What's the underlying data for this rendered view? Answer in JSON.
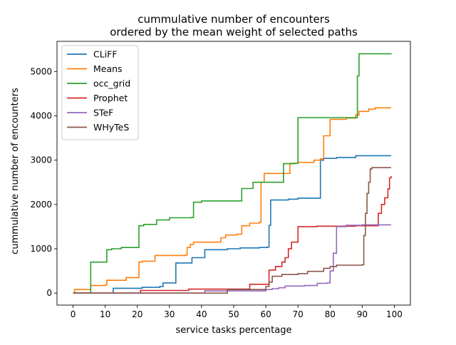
{
  "chart_data": {
    "type": "line",
    "title_line1": "cummulative number of encounters",
    "title_line2": "ordered by the mean weight of selected paths",
    "xlabel": "service tasks percentage",
    "ylabel": "cummulative number of encounters",
    "xlim": [
      -5,
      105
    ],
    "ylim": [
      -270,
      5680
    ],
    "x_ticks": [
      0,
      10,
      20,
      30,
      40,
      50,
      60,
      70,
      80,
      90,
      100
    ],
    "y_ticks": [
      0,
      1000,
      2000,
      3000,
      4000,
      5000
    ],
    "grid": false,
    "legend_position": "upper left",
    "step": "post",
    "series": [
      {
        "name": "CLiFF",
        "color": "#1f77b4",
        "points": [
          [
            0,
            0
          ],
          [
            12,
            0
          ],
          [
            12.5,
            110
          ],
          [
            20,
            110
          ],
          [
            21.5,
            130
          ],
          [
            27,
            150
          ],
          [
            28,
            230
          ],
          [
            31,
            230
          ],
          [
            32,
            680
          ],
          [
            36,
            680
          ],
          [
            37,
            800
          ],
          [
            41,
            980
          ],
          [
            48,
            1000
          ],
          [
            52,
            1020
          ],
          [
            58,
            1030
          ],
          [
            60.5,
            1040
          ],
          [
            61,
            1530
          ],
          [
            61.5,
            2100
          ],
          [
            67,
            2120
          ],
          [
            70,
            2140
          ],
          [
            76,
            2140
          ],
          [
            77,
            3000
          ],
          [
            78,
            3040
          ],
          [
            82,
            3060
          ],
          [
            88,
            3100
          ],
          [
            99,
            3100
          ]
        ]
      },
      {
        "name": "Means",
        "color": "#ff7f0e",
        "points": [
          [
            0,
            0
          ],
          [
            0.5,
            80
          ],
          [
            5,
            80
          ],
          [
            5.5,
            170
          ],
          [
            10,
            180
          ],
          [
            10.5,
            290
          ],
          [
            16,
            290
          ],
          [
            16.5,
            350
          ],
          [
            20,
            350
          ],
          [
            20.5,
            700
          ],
          [
            21.5,
            720
          ],
          [
            25,
            720
          ],
          [
            25.5,
            850
          ],
          [
            35,
            860
          ],
          [
            35.5,
            1030
          ],
          [
            36.5,
            1100
          ],
          [
            37.5,
            1150
          ],
          [
            45,
            1150
          ],
          [
            46,
            1250
          ],
          [
            47.5,
            1310
          ],
          [
            51,
            1330
          ],
          [
            52.5,
            1520
          ],
          [
            55,
            1580
          ],
          [
            58,
            1600
          ],
          [
            58.5,
            2500
          ],
          [
            59.5,
            2700
          ],
          [
            67,
            2700
          ],
          [
            67.5,
            2930
          ],
          [
            70,
            2950
          ],
          [
            75,
            3000
          ],
          [
            77,
            3030
          ],
          [
            78,
            3550
          ],
          [
            80,
            3920
          ],
          [
            85,
            3950
          ],
          [
            88,
            4020
          ],
          [
            89,
            4100
          ],
          [
            92,
            4150
          ],
          [
            94,
            4180
          ],
          [
            99,
            4180
          ]
        ]
      },
      {
        "name": "occ_grid",
        "color": "#2ca02c",
        "points": [
          [
            0,
            0
          ],
          [
            5,
            0
          ],
          [
            5.5,
            700
          ],
          [
            10,
            700
          ],
          [
            10.5,
            980
          ],
          [
            12,
            1000
          ],
          [
            15,
            1030
          ],
          [
            20,
            1030
          ],
          [
            20.5,
            1520
          ],
          [
            22,
            1550
          ],
          [
            26,
            1650
          ],
          [
            30,
            1700
          ],
          [
            37,
            1710
          ],
          [
            37.5,
            2050
          ],
          [
            40,
            2080
          ],
          [
            52,
            2080
          ],
          [
            52.5,
            2360
          ],
          [
            56,
            2500
          ],
          [
            65,
            2500
          ],
          [
            65.5,
            2920
          ],
          [
            69,
            2930
          ],
          [
            70,
            3960
          ],
          [
            77,
            3960
          ],
          [
            84,
            3960
          ],
          [
            88,
            3960
          ],
          [
            88.5,
            4900
          ],
          [
            89,
            5400
          ],
          [
            99,
            5410
          ]
        ]
      },
      {
        "name": "Prophet",
        "color": "#d62728",
        "points": [
          [
            0,
            0
          ],
          [
            20,
            0
          ],
          [
            21,
            60
          ],
          [
            30,
            60
          ],
          [
            36,
            90
          ],
          [
            48,
            90
          ],
          [
            55,
            200
          ],
          [
            60,
            200
          ],
          [
            61,
            520
          ],
          [
            63,
            600
          ],
          [
            65,
            700
          ],
          [
            66,
            800
          ],
          [
            67,
            1000
          ],
          [
            68,
            1150
          ],
          [
            70,
            1500
          ],
          [
            76,
            1510
          ],
          [
            88,
            1520
          ],
          [
            94,
            1520
          ],
          [
            95,
            1800
          ],
          [
            96,
            2000
          ],
          [
            97,
            2150
          ],
          [
            98,
            2350
          ],
          [
            98.5,
            2600
          ],
          [
            99,
            2640
          ]
        ]
      },
      {
        "name": "STeF",
        "color": "#9467bd",
        "points": [
          [
            0,
            0
          ],
          [
            40,
            0
          ],
          [
            41,
            50
          ],
          [
            58,
            50
          ],
          [
            60,
            80
          ],
          [
            62,
            100
          ],
          [
            64,
            120
          ],
          [
            66,
            160
          ],
          [
            72,
            170
          ],
          [
            76,
            220
          ],
          [
            79,
            230
          ],
          [
            80,
            500
          ],
          [
            81,
            900
          ],
          [
            82,
            1500
          ],
          [
            85,
            1530
          ],
          [
            90,
            1540
          ],
          [
            99,
            1540
          ]
        ]
      },
      {
        "name": "WHyTeS",
        "color": "#8c564b",
        "points": [
          [
            0,
            0
          ],
          [
            47,
            0
          ],
          [
            48,
            80
          ],
          [
            58,
            80
          ],
          [
            60,
            150
          ],
          [
            61,
            250
          ],
          [
            62,
            380
          ],
          [
            65,
            420
          ],
          [
            70,
            440
          ],
          [
            73,
            490
          ],
          [
            78,
            560
          ],
          [
            80,
            600
          ],
          [
            82,
            630
          ],
          [
            90,
            640
          ],
          [
            90.5,
            1300
          ],
          [
            91,
            1800
          ],
          [
            91.5,
            2250
          ],
          [
            92,
            2500
          ],
          [
            92.5,
            2800
          ],
          [
            93,
            2830
          ],
          [
            99,
            2830
          ]
        ]
      }
    ]
  }
}
